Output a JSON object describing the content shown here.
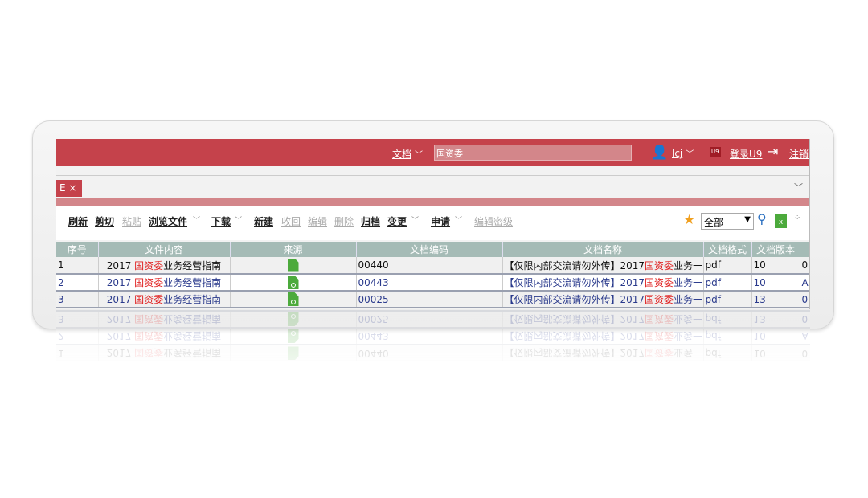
{
  "header": {
    "module": "文档",
    "search_value": "国资委",
    "user": "lcj",
    "u9_badge": "U9",
    "login_u9": "登录U9",
    "logout": "注销"
  },
  "tab": {
    "label": "E",
    "close": "×"
  },
  "toolbar": {
    "refresh": "刷新",
    "cut": "剪切",
    "paste": "粘贴",
    "browse": "浏览文件",
    "download": "下载",
    "new": "新建",
    "recall": "收回",
    "edit": "编辑",
    "delete": "删除",
    "archive": "归档",
    "change": "变更",
    "apply": "申请",
    "edit_secret": "编辑密级",
    "filter_value": "全部"
  },
  "table": {
    "headers": [
      "序号",
      "文件内容",
      "来源",
      "文档编码",
      "文档名称",
      "文档格式",
      "文档版本",
      ""
    ],
    "rows": [
      {
        "no": "1",
        "pre": "2017 ",
        "hl": "国资委",
        "post": "业务经营指南",
        "code": "00440",
        "name_pre": "【仅限内部交流请勿外传】2017",
        "name_hl": "国资委",
        "name_post": "业务一",
        "fmt": "pdf",
        "ver": "10",
        "extra": "0"
      },
      {
        "no": "2",
        "pre": "2017 ",
        "hl": "国资委",
        "post": "业务经营指南",
        "code": "00443",
        "name_pre": "【仅限内部交流请勿外传】2017",
        "name_hl": "国资委",
        "name_post": "业务一",
        "fmt": "pdf",
        "ver": "10",
        "extra": "A"
      },
      {
        "no": "3",
        "pre": "2017 ",
        "hl": "国资委",
        "post": "业务经营指南",
        "code": "00025",
        "name_pre": "【仅限内部交流请勿外传】2017",
        "name_hl": "国资委",
        "name_post": "业务一",
        "fmt": "pdf",
        "ver": "13",
        "extra": "0"
      }
    ]
  },
  "colors": {
    "brand": "#c5424b",
    "highlight": "#e02020",
    "link": "#2a3a8c"
  }
}
